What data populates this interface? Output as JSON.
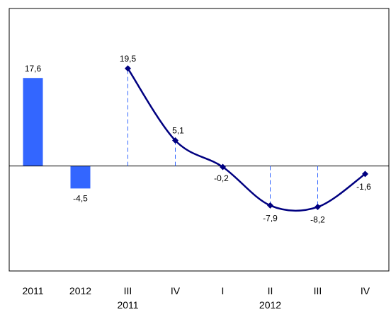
{
  "chart_data": {
    "type": "bar+line",
    "title": "",
    "ylabel": "",
    "xlabel": "",
    "ylim": [
      -21,
      31.5
    ],
    "grid": false,
    "legend": "none",
    "colors": {
      "bars": "#3366FF",
      "line": "#000080",
      "drop_lines": "#3366FF",
      "axis": "#000000",
      "frame": "#000000"
    },
    "bars": {
      "categories": [
        "2011",
        "2012"
      ],
      "values": [
        17.6,
        -4.5
      ],
      "labels": [
        "17,6",
        "-4,5"
      ]
    },
    "line": {
      "categories": [
        "III",
        "IV",
        "I",
        "II",
        "III",
        "IV"
      ],
      "values": [
        19.5,
        5.1,
        -0.2,
        -7.9,
        -8.2,
        -1.6
      ],
      "labels": [
        "19,5",
        "5,1",
        "-0,2",
        "-7,9",
        "-8,2",
        "-1,6"
      ],
      "drop_lines": [
        true,
        true,
        false,
        true,
        true,
        false
      ]
    },
    "group_labels": [
      {
        "text": "2011",
        "under": 2
      },
      {
        "text": "2012",
        "under": 5
      }
    ]
  }
}
